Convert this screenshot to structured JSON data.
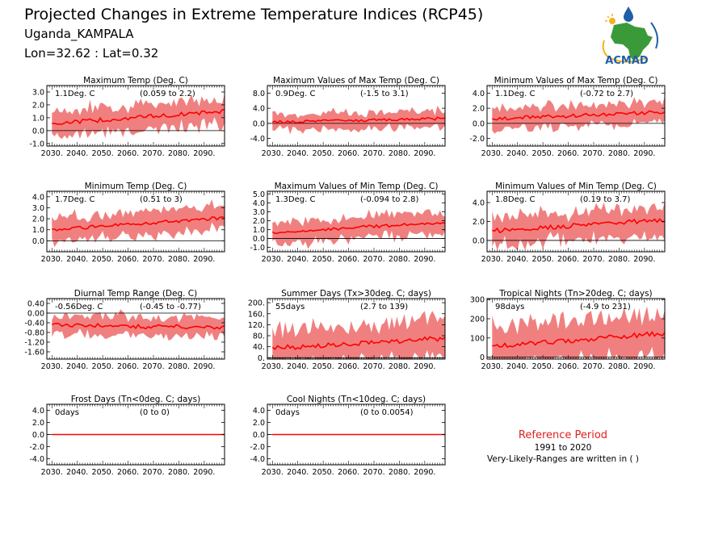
{
  "header": {
    "title": "Projected Changes in Extreme Temperature Indices (RCP45)",
    "location": "Uganda_KAMPALA",
    "coords": "Lon=32.62 : Lat=0.32",
    "logo_text": "ACMAD"
  },
  "legend": {
    "heading": "Reference Period",
    "period": "1991 to 2020",
    "note": "Very-Likely-Ranges are written in ( )"
  },
  "colors": {
    "band": "#f08080",
    "line": "#ff0000",
    "logo_blue": "#1f5fa8",
    "logo_green": "#3a9a3a",
    "heading_red": "#e02020"
  },
  "chart_data": [
    {
      "type": "area",
      "title": "Maximum Temp (Deg. C)",
      "value_text": "1.1Deg. C",
      "range_text": "(0.059 to 2.2)",
      "x": [
        2030,
        2095
      ],
      "xticks": [
        "2030.",
        "2040.",
        "2050.",
        "2060.",
        "2070.",
        "2080.",
        "2090."
      ],
      "ylim": [
        -1.2,
        3.5
      ],
      "yticks": [
        {
          "v": 3,
          "l": "3.0"
        },
        {
          "v": 2,
          "l": "2.0"
        },
        {
          "v": 1,
          "l": "1.0"
        },
        {
          "v": 0,
          "l": "0.0"
        },
        {
          "v": -1,
          "l": "-1.0"
        }
      ],
      "mean_start": 0.55,
      "mean_end": 1.5,
      "spread": 1.05,
      "noise": 0.55
    },
    {
      "type": "area",
      "title": "Maximum Values of Max Temp (Deg. C)",
      "value_text": "0.9Deg. C",
      "range_text": "(-1.5 to 3.1)",
      "x": [
        2030,
        2095
      ],
      "xticks": [
        "2030.",
        "2040.",
        "2050.",
        "2060.",
        "2070.",
        "2080.",
        "2090."
      ],
      "ylim": [
        -6,
        10
      ],
      "yticks": [
        {
          "v": 8,
          "l": "8.0"
        },
        {
          "v": 4,
          "l": "4.0"
        },
        {
          "v": 0,
          "l": "0.0"
        },
        {
          "v": -4,
          "l": "-4.0"
        }
      ],
      "mean_start": 0.3,
      "mean_end": 1.3,
      "spread": 2.2,
      "noise": 1.2
    },
    {
      "type": "area",
      "title": "Minimum Values of Max Temp (Deg. C)",
      "value_text": "1.1Deg. C",
      "range_text": "(-0.72 to 2.7)",
      "x": [
        2030,
        2095
      ],
      "xticks": [
        "2030.",
        "2040.",
        "2050.",
        "2060.",
        "2070.",
        "2080.",
        "2090."
      ],
      "ylim": [
        -3,
        5
      ],
      "yticks": [
        {
          "v": 4,
          "l": "4.0"
        },
        {
          "v": 2,
          "l": "2.0"
        },
        {
          "v": 0,
          "l": "0.0"
        },
        {
          "v": -2,
          "l": "-2.0"
        }
      ],
      "mean_start": 0.6,
      "mean_end": 1.5,
      "spread": 1.4,
      "noise": 0.8
    },
    {
      "type": "area",
      "title": "Minimum Temp (Deg. C)",
      "value_text": "1.7Deg. C",
      "range_text": "(0.51 to 3)",
      "x": [
        2030,
        2095
      ],
      "xticks": [
        "2030.",
        "2040.",
        "2050.",
        "2060.",
        "2070.",
        "2080.",
        "2090."
      ],
      "ylim": [
        -1,
        4.5
      ],
      "yticks": [
        {
          "v": 4,
          "l": "4.0"
        },
        {
          "v": 3,
          "l": "3.0"
        },
        {
          "v": 2,
          "l": "2.0"
        },
        {
          "v": 1,
          "l": "1.0"
        },
        {
          "v": 0,
          "l": "0.0"
        }
      ],
      "mean_start": 1.0,
      "mean_end": 2.1,
      "spread": 1.1,
      "noise": 0.5
    },
    {
      "type": "area",
      "title": "Maximum Values of Min Temp (Deg. C)",
      "value_text": "1.3Deg. C",
      "range_text": "(-0.094 to 2.8)",
      "x": [
        2030,
        2095
      ],
      "xticks": [
        "2030.",
        "2040.",
        "2050.",
        "2060.",
        "2070.",
        "2080.",
        "2090."
      ],
      "ylim": [
        -1.5,
        5.3
      ],
      "yticks": [
        {
          "v": 5,
          "l": "5.0"
        },
        {
          "v": 4,
          "l": "4.0"
        },
        {
          "v": 3,
          "l": "3.0"
        },
        {
          "v": 2,
          "l": "2.0"
        },
        {
          "v": 1,
          "l": "1.0"
        },
        {
          "v": 0,
          "l": "0.0"
        },
        {
          "v": -1,
          "l": "-1.0"
        }
      ],
      "mean_start": 0.7,
      "mean_end": 1.8,
      "spread": 1.3,
      "noise": 0.6
    },
    {
      "type": "area",
      "title": "Minimum Values of Min Temp (Deg. C)",
      "value_text": "1.8Deg. C",
      "range_text": "(0.19 to 3.7)",
      "x": [
        2030,
        2095
      ],
      "xticks": [
        "2030.",
        "2040.",
        "2050.",
        "2060.",
        "2070.",
        "2080.",
        "2090."
      ],
      "ylim": [
        -1.2,
        5.2
      ],
      "yticks": [
        {
          "v": 4,
          "l": "4.0"
        },
        {
          "v": 2,
          "l": "2.0"
        },
        {
          "v": 0,
          "l": "0.0"
        }
      ],
      "mean_start": 1.0,
      "mean_end": 2.2,
      "spread": 1.6,
      "noise": 0.8
    },
    {
      "type": "area",
      "title": "Diurnal Temp Range (Deg. C)",
      "value_text": "-0.56Deg. C",
      "range_text": "(-0.45 to -0.77)",
      "x": [
        2030,
        2095
      ],
      "xticks": [
        "2030.",
        "2040.",
        "2050.",
        "2060.",
        "2070.",
        "2080.",
        "2090."
      ],
      "ylim": [
        -1.9,
        0.6
      ],
      "yticks": [
        {
          "v": 0.4,
          "l": "0.40"
        },
        {
          "v": 0,
          "l": "0.00"
        },
        {
          "v": -0.4,
          "l": "-0.40"
        },
        {
          "v": -0.8,
          "l": "-0.80"
        },
        {
          "v": -1.2,
          "l": "-1.20"
        },
        {
          "v": -1.6,
          "l": "-1.60"
        }
      ],
      "mean_start": -0.5,
      "mean_end": -0.6,
      "spread": 0.4,
      "noise": 0.3
    },
    {
      "type": "area",
      "title": "Summer Days (Tx>30deg. C; days)",
      "value_text": "55days",
      "range_text": "(2.7 to 139)",
      "x": [
        2030,
        2095
      ],
      "xticks": [
        "2030.",
        "2040.",
        "2050.",
        "2060.",
        "2070.",
        "2080.",
        "2090."
      ],
      "ylim": [
        -5,
        215
      ],
      "yticks": [
        {
          "v": 200,
          "l": "200."
        },
        {
          "v": 160,
          "l": "160."
        },
        {
          "v": 120,
          "l": "120."
        },
        {
          "v": 80,
          "l": "80."
        },
        {
          "v": 40,
          "l": "40."
        },
        {
          "v": 0,
          "l": "0."
        }
      ],
      "mean_start": 35,
      "mean_end": 70,
      "spread": 70,
      "noise": 30
    },
    {
      "type": "area",
      "title": "Tropical Nights (Tn>20deg. C; days)",
      "value_text": "98days",
      "range_text": "(-4.9 to 231)",
      "x": [
        2030,
        2095
      ],
      "xticks": [
        "2030.",
        "2040.",
        "2050.",
        "2060.",
        "2070.",
        "2080.",
        "2090."
      ],
      "ylim": [
        -10,
        305
      ],
      "yticks": [
        {
          "v": 300,
          "l": "300"
        },
        {
          "v": 200,
          "l": "200"
        },
        {
          "v": 100,
          "l": "100"
        },
        {
          "v": 0,
          "l": "0"
        }
      ],
      "mean_start": 55,
      "mean_end": 125,
      "spread": 110,
      "noise": 40
    },
    {
      "type": "area",
      "title": "Frost Days (Tn<0deg. C; days)",
      "value_text": "0days",
      "range_text": "(0 to 0)",
      "x": [
        2030,
        2095
      ],
      "xticks": [
        "2030.",
        "2040.",
        "2050.",
        "2060.",
        "2070.",
        "2080.",
        "2090."
      ],
      "ylim": [
        -5,
        5
      ],
      "yticks": [
        {
          "v": 4,
          "l": "4.0"
        },
        {
          "v": 2,
          "l": "2.0"
        },
        {
          "v": 0,
          "l": "0.0"
        },
        {
          "v": -2,
          "l": "-2.0"
        },
        {
          "v": -4,
          "l": "-4.0"
        }
      ],
      "mean_start": 0,
      "mean_end": 0,
      "spread": 0,
      "noise": 0
    },
    {
      "type": "area",
      "title": "Cool Nights (Tn<10deg. C; days)",
      "value_text": "0days",
      "range_text": "(0 to 0.0054)",
      "x": [
        2030,
        2095
      ],
      "xticks": [
        "2030.",
        "2040.",
        "2050.",
        "2060.",
        "2070.",
        "2080.",
        "2090."
      ],
      "ylim": [
        -5,
        5
      ],
      "yticks": [
        {
          "v": 4,
          "l": "4.0"
        },
        {
          "v": 2,
          "l": "2.0"
        },
        {
          "v": 0,
          "l": "0.0"
        },
        {
          "v": -2,
          "l": "-2.0"
        },
        {
          "v": -4,
          "l": "-4.0"
        }
      ],
      "mean_start": 0,
      "mean_end": 0,
      "spread": 0,
      "noise": 0
    }
  ]
}
